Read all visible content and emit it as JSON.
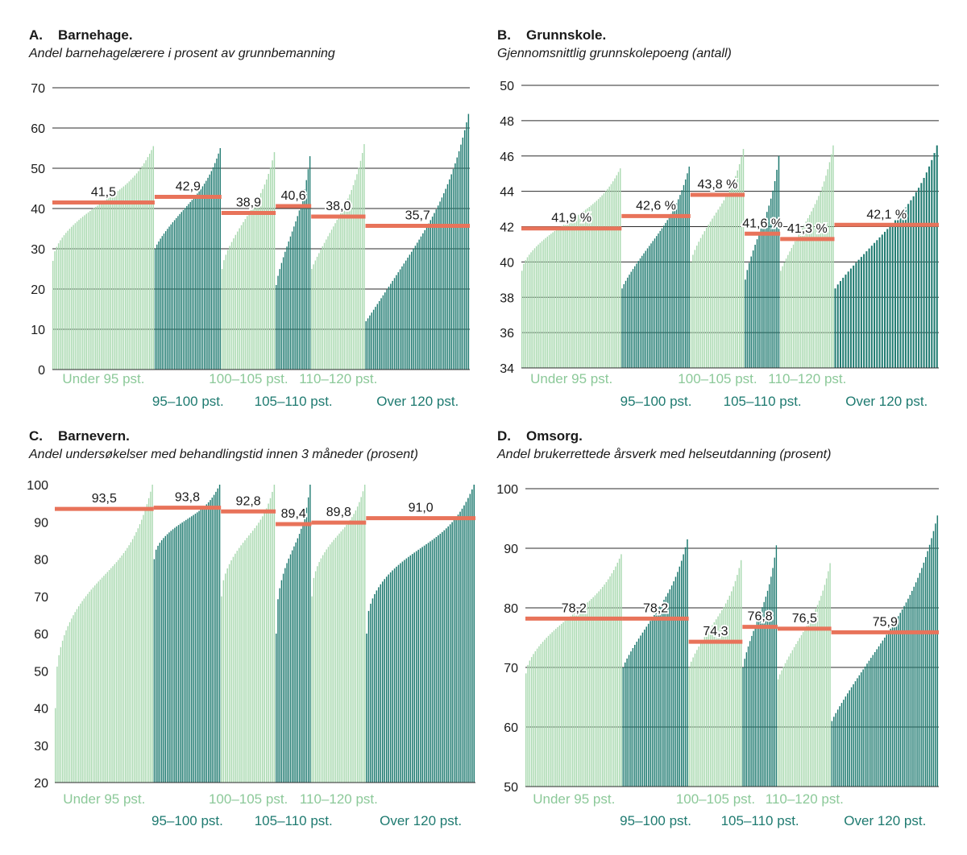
{
  "chart_data": [
    {
      "id": "A",
      "type": "bar",
      "letter": "A.",
      "title": "Barnehage.",
      "subtitle": "Andel barnehagelærere i prosent av grunnbemanning",
      "ylim": [
        0,
        70
      ],
      "yticks": [
        0,
        10,
        20,
        30,
        40,
        50,
        60,
        70
      ],
      "groups": [
        {
          "label": "Under 95 pst.",
          "shade": "light",
          "min": 27,
          "max": 55.5,
          "curve": 0.55,
          "count": 55,
          "mean": 41.5,
          "mean_label": "41,5"
        },
        {
          "label": "95–100 pst.",
          "shade": "dark",
          "min": 30,
          "max": 55,
          "curve": 0.8,
          "count": 38,
          "mean": 42.9,
          "mean_label": "42,9"
        },
        {
          "label": "100–105 pst.",
          "shade": "light",
          "min": 25,
          "max": 54,
          "curve": 0.7,
          "count": 28,
          "mean": 38.9,
          "mean_label": "38,9"
        },
        {
          "label": "105–110 pst.",
          "shade": "dark",
          "min": 21,
          "max": 53,
          "curve": 0.8,
          "count": 20,
          "mean": 40.6,
          "mean_label": "40,6"
        },
        {
          "label": "110–120 pst.",
          "shade": "light",
          "min": 25,
          "max": 56,
          "curve": 0.9,
          "count": 30,
          "mean": 38.0,
          "mean_label": "38,0"
        },
        {
          "label": "Over 120 pst.",
          "shade": "dark",
          "min": 12,
          "max": 63.5,
          "curve": 1.0,
          "count": 55,
          "mean": 35.7,
          "mean_label": "35,7"
        }
      ]
    },
    {
      "id": "B",
      "type": "bar",
      "letter": "B.",
      "title": "Grunnskole.",
      "subtitle": "Gjennomsnittlig grunnskolepoeng (antall)",
      "ylim": [
        34,
        50
      ],
      "yticks": [
        34,
        36,
        38,
        40,
        42,
        44,
        46,
        48,
        50
      ],
      "groups": [
        {
          "label": "Under 95 pst.",
          "shade": "light",
          "min": 39.5,
          "max": 45.3,
          "curve": 0.6,
          "count": 55,
          "mean": 41.9,
          "mean_label": "41,9 %"
        },
        {
          "label": "95–100 pst.",
          "shade": "dark",
          "min": 38.5,
          "max": 45.4,
          "curve": 0.85,
          "count": 38,
          "mean": 42.6,
          "mean_label": "42,6 %"
        },
        {
          "label": "100–105 pst.",
          "shade": "light",
          "min": 40,
          "max": 46.4,
          "curve": 0.75,
          "count": 28,
          "mean": 43.8,
          "mean_label": "43,8 %"
        },
        {
          "label": "105–110 pst.",
          "shade": "dark",
          "min": 39,
          "max": 46,
          "curve": 0.8,
          "count": 18,
          "mean": 41.6,
          "mean_label": "41,6 %"
        },
        {
          "label": "110–120 pst.",
          "shade": "light",
          "min": 39.5,
          "max": 46.6,
          "curve": 0.9,
          "count": 30,
          "mean": 41.3,
          "mean_label": "41,3 %"
        },
        {
          "label": "Over 120 pst.",
          "shade": "dark",
          "min": 38.5,
          "max": 46.6,
          "curve": 0.9,
          "count": 40,
          "mean": 42.1,
          "mean_label": "42,1 %"
        }
      ]
    },
    {
      "id": "C",
      "type": "bar",
      "letter": "C.",
      "title": "Barnevern.",
      "subtitle": "Andel undersøkelser med behandlingstid innen 3 måneder (prosent)",
      "ylim": [
        20,
        100
      ],
      "yticks": [
        20,
        30,
        40,
        50,
        60,
        70,
        80,
        90,
        100
      ],
      "groups": [
        {
          "label": "Under 95 pst.",
          "shade": "light",
          "min": 40,
          "max": 100,
          "curve": 0.35,
          "count": 55,
          "mean": 93.5,
          "mean_label": "93,5"
        },
        {
          "label": "95–100 pst.",
          "shade": "dark",
          "min": 80,
          "max": 100,
          "curve": 0.5,
          "count": 36,
          "mean": 93.8,
          "mean_label": "93,8"
        },
        {
          "label": "100–105 pst.",
          "shade": "light",
          "min": 70,
          "max": 100,
          "curve": 0.5,
          "count": 28,
          "mean": 92.8,
          "mean_label": "92,8"
        },
        {
          "label": "105–110 pst.",
          "shade": "dark",
          "min": 60,
          "max": 100,
          "curve": 0.4,
          "count": 20,
          "mean": 89.4,
          "mean_label": "89,4"
        },
        {
          "label": "110–120 pst.",
          "shade": "light",
          "min": 70,
          "max": 100,
          "curve": 0.45,
          "count": 30,
          "mean": 89.8,
          "mean_label": "89,8"
        },
        {
          "label": "Over 120 pst.",
          "shade": "dark",
          "min": 60,
          "max": 100,
          "curve": 0.4,
          "count": 55,
          "mean": 91.0,
          "mean_label": "91,0"
        }
      ]
    },
    {
      "id": "D",
      "type": "bar",
      "letter": "D.",
      "title": "Omsorg.",
      "subtitle": "Andel brukerrettede årsverk med helseutdanning (prosent)",
      "ylim": [
        50,
        100
      ],
      "yticks": [
        50,
        60,
        70,
        80,
        90,
        100
      ],
      "groups": [
        {
          "label": "Under 95 pst.",
          "shade": "light",
          "min": 69,
          "max": 89,
          "curve": 0.6,
          "count": 52,
          "mean": 78.2,
          "mean_label": "78,2"
        },
        {
          "label": "95–100 pst.",
          "shade": "dark",
          "min": 70,
          "max": 91.5,
          "curve": 0.85,
          "count": 34,
          "mean": 78.2,
          "mean_label": "78,2"
        },
        {
          "label": "100–105 pst.",
          "shade": "light",
          "min": 70,
          "max": 88,
          "curve": 0.8,
          "count": 28,
          "mean": 74.3,
          "mean_label": "74,3"
        },
        {
          "label": "105–110 pst.",
          "shade": "dark",
          "min": 70,
          "max": 90.5,
          "curve": 0.8,
          "count": 20,
          "mean": 76.8,
          "mean_label": "76,8"
        },
        {
          "label": "110–120 pst.",
          "shade": "light",
          "min": 68,
          "max": 87.5,
          "curve": 0.85,
          "count": 30,
          "mean": 76.5,
          "mean_label": "76,5"
        },
        {
          "label": "Over 120 pst.",
          "shade": "dark",
          "min": 61,
          "max": 95.5,
          "curve": 0.9,
          "count": 55,
          "mean": 75.9,
          "mean_label": "75,9"
        }
      ]
    }
  ],
  "colors": {
    "light_bar": "#a9d9b0",
    "dark_bar": "#1e7a70",
    "light_label": "#8cc999",
    "dark_label": "#1e7a70",
    "mean_line": "#e8735a",
    "gridline": "#2b2b2b",
    "text": "#1a1a1a"
  }
}
